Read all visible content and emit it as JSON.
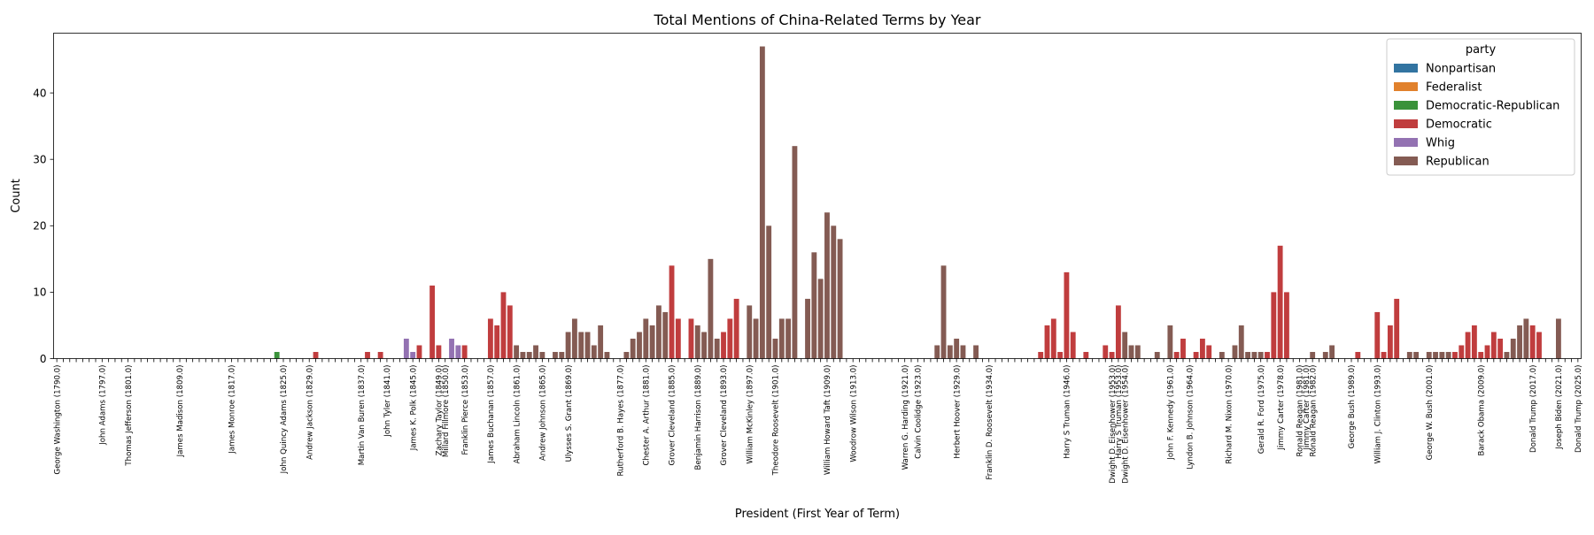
{
  "chart_data": {
    "type": "bar",
    "title": "Total Mentions of China-Related Terms by Year",
    "xlabel": "President (First Year of Term)",
    "ylabel": "Count",
    "ylim": [
      0,
      49
    ],
    "yticks": [
      0,
      10,
      20,
      30,
      40
    ],
    "grid": false,
    "legend": {
      "title": "party",
      "position": "top-right",
      "entries": [
        "Nonpartisan",
        "Federalist",
        "Democratic-Republican",
        "Democratic",
        "Whig",
        "Republican"
      ]
    },
    "colors": {
      "Nonpartisan": "#3274a1",
      "Federalist": "#e1812c",
      "Democratic-Republican": "#3a923a",
      "Democratic": "#c03d3e",
      "Whig": "#9372b2",
      "Republican": "#845b53"
    },
    "n_slots": 236,
    "visible_tick_labels": [
      {
        "slot": 0,
        "label": "George Washington (1790.0)"
      },
      {
        "slot": 7,
        "label": "John Adams (1797.0)"
      },
      {
        "slot": 11,
        "label": "Thomas Jefferson (1801.0)"
      },
      {
        "slot": 19,
        "label": "James Madison (1809.0)"
      },
      {
        "slot": 27,
        "label": "James Monroe (1817.0)"
      },
      {
        "slot": 35,
        "label": "John Quincy Adams (1825.0)"
      },
      {
        "slot": 39,
        "label": "Andrew Jackson (1829.0)"
      },
      {
        "slot": 47,
        "label": "Martin Van Buren (1837.0)"
      },
      {
        "slot": 51,
        "label": "John Tyler (1841.0)"
      },
      {
        "slot": 55,
        "label": "James K. Polk (1845.0)"
      },
      {
        "slot": 59,
        "label": "Zachary Taylor (1849.0)"
      },
      {
        "slot": 60,
        "label": "Millard Fillmore (1850.0)"
      },
      {
        "slot": 63,
        "label": "Franklin Pierce (1853.0)"
      },
      {
        "slot": 67,
        "label": "James Buchanan (1857.0)"
      },
      {
        "slot": 71,
        "label": "Abraham Lincoln (1861.0)"
      },
      {
        "slot": 75,
        "label": "Andrew Johnson (1865.0)"
      },
      {
        "slot": 79,
        "label": "Ulysses S. Grant (1869.0)"
      },
      {
        "slot": 87,
        "label": "Rutherford B. Hayes (1877.0)"
      },
      {
        "slot": 91,
        "label": "Chester A. Arthur (1881.0)"
      },
      {
        "slot": 95,
        "label": "Grover Cleveland (1885.0)"
      },
      {
        "slot": 99,
        "label": "Benjamin Harrison (1889.0)"
      },
      {
        "slot": 103,
        "label": "Grover Cleveland (1893.0)"
      },
      {
        "slot": 107,
        "label": "William McKinley (1897.0)"
      },
      {
        "slot": 111,
        "label": "Theodore Roosevelt (1901.0)"
      },
      {
        "slot": 119,
        "label": "William Howard Taft (1909.0)"
      },
      {
        "slot": 123,
        "label": "Woodrow Wilson (1913.0)"
      },
      {
        "slot": 131,
        "label": "Warren G. Harding (1921.0)"
      },
      {
        "slot": 133,
        "label": "Calvin Coolidge (1923.0)"
      },
      {
        "slot": 139,
        "label": "Herbert Hoover (1929.0)"
      },
      {
        "slot": 144,
        "label": "Franklin D. Roosevelt (1934.0)"
      },
      {
        "slot": 156,
        "label": "Harry S Truman (1946.0)"
      },
      {
        "slot": 163,
        "label": "Dwight D. Eisenhower (1953.0)"
      },
      {
        "slot": 164,
        "label": "Harry S Truman (1953.0)"
      },
      {
        "slot": 165,
        "label": "Dwight D. Eisenhower (1954.0)"
      },
      {
        "slot": 172,
        "label": "John F. Kennedy (1961.0)"
      },
      {
        "slot": 175,
        "label": "Lyndon B. Johnson (1964.0)"
      },
      {
        "slot": 181,
        "label": "Richard M. Nixon (1970.0)"
      },
      {
        "slot": 186,
        "label": "Gerald R. Ford (1975.0)"
      },
      {
        "slot": 189,
        "label": "Jimmy Carter (1978.0)"
      },
      {
        "slot": 192,
        "label": "Ronald Reagan (1981.0)"
      },
      {
        "slot": 193,
        "label": "Jimmy Carter (1981.0)"
      },
      {
        "slot": 194,
        "label": "Ronald Reagan (1982.0)"
      },
      {
        "slot": 200,
        "label": "George Bush (1989.0)"
      },
      {
        "slot": 204,
        "label": "William J. Clinton (1993.0)"
      },
      {
        "slot": 212,
        "label": "George W. Bush (2001.0)"
      },
      {
        "slot": 220,
        "label": "Barack Obama (2009.0)"
      },
      {
        "slot": 228,
        "label": "Donald Trump (2017.0)"
      },
      {
        "slot": 232,
        "label": "Joseph Biden (2021.0)"
      },
      {
        "slot": 235,
        "label": "Donald Trump (2025.0)"
      }
    ],
    "bars": [
      {
        "slot": 34,
        "party": "Democratic-Republican",
        "value": 1
      },
      {
        "slot": 40,
        "party": "Democratic",
        "value": 1
      },
      {
        "slot": 48,
        "party": "Democratic",
        "value": 1
      },
      {
        "slot": 50,
        "party": "Democratic",
        "value": 1
      },
      {
        "slot": 54,
        "party": "Whig",
        "value": 3
      },
      {
        "slot": 55,
        "party": "Whig",
        "value": 1
      },
      {
        "slot": 56,
        "party": "Democratic",
        "value": 2
      },
      {
        "slot": 58,
        "party": "Democratic",
        "value": 11
      },
      {
        "slot": 59,
        "party": "Democratic",
        "value": 2
      },
      {
        "slot": 61,
        "party": "Whig",
        "value": 3
      },
      {
        "slot": 62,
        "party": "Whig",
        "value": 2
      },
      {
        "slot": 63,
        "party": "Democratic",
        "value": 2
      },
      {
        "slot": 67,
        "party": "Democratic",
        "value": 6
      },
      {
        "slot": 68,
        "party": "Democratic",
        "value": 5
      },
      {
        "slot": 69,
        "party": "Democratic",
        "value": 10
      },
      {
        "slot": 70,
        "party": "Democratic",
        "value": 8
      },
      {
        "slot": 71,
        "party": "Republican",
        "value": 2
      },
      {
        "slot": 72,
        "party": "Republican",
        "value": 1
      },
      {
        "slot": 73,
        "party": "Republican",
        "value": 1
      },
      {
        "slot": 74,
        "party": "Republican",
        "value": 2
      },
      {
        "slot": 75,
        "party": "Republican",
        "value": 1
      },
      {
        "slot": 77,
        "party": "Republican",
        "value": 1
      },
      {
        "slot": 78,
        "party": "Republican",
        "value": 1
      },
      {
        "slot": 79,
        "party": "Republican",
        "value": 4
      },
      {
        "slot": 80,
        "party": "Republican",
        "value": 6
      },
      {
        "slot": 81,
        "party": "Republican",
        "value": 4
      },
      {
        "slot": 82,
        "party": "Republican",
        "value": 4
      },
      {
        "slot": 83,
        "party": "Republican",
        "value": 2
      },
      {
        "slot": 84,
        "party": "Republican",
        "value": 5
      },
      {
        "slot": 85,
        "party": "Republican",
        "value": 1
      },
      {
        "slot": 88,
        "party": "Republican",
        "value": 1
      },
      {
        "slot": 89,
        "party": "Republican",
        "value": 3
      },
      {
        "slot": 90,
        "party": "Republican",
        "value": 4
      },
      {
        "slot": 91,
        "party": "Republican",
        "value": 6
      },
      {
        "slot": 92,
        "party": "Republican",
        "value": 5
      },
      {
        "slot": 93,
        "party": "Republican",
        "value": 8
      },
      {
        "slot": 94,
        "party": "Republican",
        "value": 7
      },
      {
        "slot": 95,
        "party": "Democratic",
        "value": 14
      },
      {
        "slot": 96,
        "party": "Democratic",
        "value": 6
      },
      {
        "slot": 98,
        "party": "Democratic",
        "value": 6
      },
      {
        "slot": 99,
        "party": "Republican",
        "value": 5
      },
      {
        "slot": 100,
        "party": "Republican",
        "value": 4
      },
      {
        "slot": 101,
        "party": "Republican",
        "value": 15
      },
      {
        "slot": 102,
        "party": "Republican",
        "value": 3
      },
      {
        "slot": 103,
        "party": "Democratic",
        "value": 4
      },
      {
        "slot": 104,
        "party": "Democratic",
        "value": 6
      },
      {
        "slot": 105,
        "party": "Democratic",
        "value": 9
      },
      {
        "slot": 107,
        "party": "Republican",
        "value": 8
      },
      {
        "slot": 108,
        "party": "Republican",
        "value": 6
      },
      {
        "slot": 109,
        "party": "Republican",
        "value": 47
      },
      {
        "slot": 110,
        "party": "Republican",
        "value": 20
      },
      {
        "slot": 111,
        "party": "Republican",
        "value": 3
      },
      {
        "slot": 112,
        "party": "Republican",
        "value": 6
      },
      {
        "slot": 113,
        "party": "Republican",
        "value": 6
      },
      {
        "slot": 114,
        "party": "Republican",
        "value": 32
      },
      {
        "slot": 116,
        "party": "Republican",
        "value": 9
      },
      {
        "slot": 117,
        "party": "Republican",
        "value": 16
      },
      {
        "slot": 118,
        "party": "Republican",
        "value": 12
      },
      {
        "slot": 119,
        "party": "Republican",
        "value": 22
      },
      {
        "slot": 120,
        "party": "Republican",
        "value": 20
      },
      {
        "slot": 121,
        "party": "Republican",
        "value": 18
      },
      {
        "slot": 136,
        "party": "Republican",
        "value": 2
      },
      {
        "slot": 137,
        "party": "Republican",
        "value": 14
      },
      {
        "slot": 138,
        "party": "Republican",
        "value": 2
      },
      {
        "slot": 139,
        "party": "Republican",
        "value": 3
      },
      {
        "slot": 140,
        "party": "Republican",
        "value": 2
      },
      {
        "slot": 142,
        "party": "Republican",
        "value": 2
      },
      {
        "slot": 152,
        "party": "Democratic",
        "value": 1
      },
      {
        "slot": 153,
        "party": "Democratic",
        "value": 5
      },
      {
        "slot": 154,
        "party": "Democratic",
        "value": 6
      },
      {
        "slot": 155,
        "party": "Democratic",
        "value": 1
      },
      {
        "slot": 156,
        "party": "Democratic",
        "value": 13
      },
      {
        "slot": 157,
        "party": "Democratic",
        "value": 4
      },
      {
        "slot": 159,
        "party": "Democratic",
        "value": 1
      },
      {
        "slot": 162,
        "party": "Democratic",
        "value": 2
      },
      {
        "slot": 163,
        "party": "Democratic",
        "value": 1
      },
      {
        "slot": 164,
        "party": "Democratic",
        "value": 8
      },
      {
        "slot": 165,
        "party": "Republican",
        "value": 4
      },
      {
        "slot": 166,
        "party": "Republican",
        "value": 2
      },
      {
        "slot": 167,
        "party": "Republican",
        "value": 2
      },
      {
        "slot": 170,
        "party": "Republican",
        "value": 1
      },
      {
        "slot": 172,
        "party": "Republican",
        "value": 5
      },
      {
        "slot": 173,
        "party": "Democratic",
        "value": 1
      },
      {
        "slot": 174,
        "party": "Democratic",
        "value": 3
      },
      {
        "slot": 176,
        "party": "Democratic",
        "value": 1
      },
      {
        "slot": 177,
        "party": "Democratic",
        "value": 3
      },
      {
        "slot": 178,
        "party": "Democratic",
        "value": 2
      },
      {
        "slot": 180,
        "party": "Republican",
        "value": 1
      },
      {
        "slot": 182,
        "party": "Republican",
        "value": 2
      },
      {
        "slot": 183,
        "party": "Republican",
        "value": 5
      },
      {
        "slot": 184,
        "party": "Republican",
        "value": 1
      },
      {
        "slot": 185,
        "party": "Republican",
        "value": 1
      },
      {
        "slot": 186,
        "party": "Republican",
        "value": 1
      },
      {
        "slot": 187,
        "party": "Democratic",
        "value": 1
      },
      {
        "slot": 188,
        "party": "Democratic",
        "value": 10
      },
      {
        "slot": 189,
        "party": "Democratic",
        "value": 17
      },
      {
        "slot": 190,
        "party": "Democratic",
        "value": 10
      },
      {
        "slot": 194,
        "party": "Republican",
        "value": 1
      },
      {
        "slot": 196,
        "party": "Republican",
        "value": 1
      },
      {
        "slot": 197,
        "party": "Republican",
        "value": 2
      },
      {
        "slot": 201,
        "party": "Democratic",
        "value": 1
      },
      {
        "slot": 204,
        "party": "Democratic",
        "value": 7
      },
      {
        "slot": 205,
        "party": "Democratic",
        "value": 1
      },
      {
        "slot": 206,
        "party": "Democratic",
        "value": 5
      },
      {
        "slot": 207,
        "party": "Democratic",
        "value": 9
      },
      {
        "slot": 209,
        "party": "Republican",
        "value": 1
      },
      {
        "slot": 210,
        "party": "Republican",
        "value": 1
      },
      {
        "slot": 212,
        "party": "Republican",
        "value": 1
      },
      {
        "slot": 213,
        "party": "Republican",
        "value": 1
      },
      {
        "slot": 214,
        "party": "Republican",
        "value": 1
      },
      {
        "slot": 215,
        "party": "Republican",
        "value": 1
      },
      {
        "slot": 216,
        "party": "Democratic",
        "value": 1
      },
      {
        "slot": 217,
        "party": "Democratic",
        "value": 2
      },
      {
        "slot": 218,
        "party": "Democratic",
        "value": 4
      },
      {
        "slot": 219,
        "party": "Democratic",
        "value": 5
      },
      {
        "slot": 220,
        "party": "Democratic",
        "value": 1
      },
      {
        "slot": 221,
        "party": "Democratic",
        "value": 2
      },
      {
        "slot": 222,
        "party": "Democratic",
        "value": 4
      },
      {
        "slot": 223,
        "party": "Democratic",
        "value": 3
      },
      {
        "slot": 224,
        "party": "Republican",
        "value": 1
      },
      {
        "slot": 225,
        "party": "Republican",
        "value": 3
      },
      {
        "slot": 226,
        "party": "Republican",
        "value": 5
      },
      {
        "slot": 227,
        "party": "Republican",
        "value": 6
      },
      {
        "slot": 228,
        "party": "Democratic",
        "value": 5
      },
      {
        "slot": 229,
        "party": "Democratic",
        "value": 4
      },
      {
        "slot": 232,
        "party": "Republican",
        "value": 6
      }
    ]
  }
}
